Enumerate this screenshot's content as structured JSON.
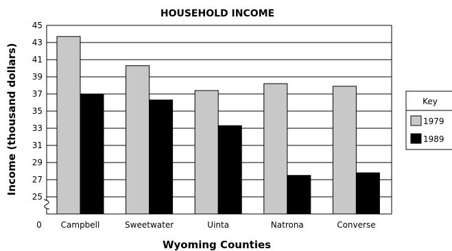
{
  "chart_data": {
    "type": "bar",
    "title": "HOUSEHOLD INCOME",
    "xlabel": "Wyoming Counties",
    "ylabel": "Income (thousand dollars)",
    "categories": [
      "Campbell",
      "Sweetwater",
      "Uinta",
      "Natrona",
      "Converse"
    ],
    "series": [
      {
        "name": "1979",
        "values": [
          43.7,
          40.3,
          37.4,
          38.2,
          37.9
        ],
        "color": "#c8c8c8"
      },
      {
        "name": "1989",
        "values": [
          37.0,
          36.3,
          33.3,
          27.5,
          27.8
        ],
        "color": "#000000"
      }
    ],
    "ylim": [
      23,
      45
    ],
    "yticks": [
      25,
      27,
      29,
      31,
      33,
      35,
      37,
      39,
      41,
      43,
      45
    ],
    "y_zero_label": "0",
    "axis_break": true,
    "grid": true,
    "legend": {
      "title": "Key",
      "position": "right"
    }
  }
}
